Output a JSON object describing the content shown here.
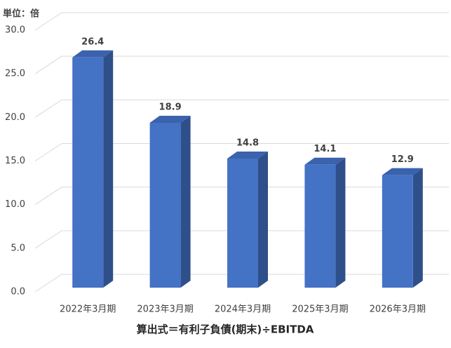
{
  "chart_data": {
    "type": "bar3d",
    "unit_label": "単位：倍",
    "x_axis_title": "算出式＝有利子負債(期末)÷EBITDA",
    "categories": [
      "2022年3月期",
      "2023年3月期",
      "2024年3月期",
      "2025年3月期",
      "2026年3月期"
    ],
    "values": [
      26.4,
      18.9,
      14.8,
      14.1,
      12.9
    ],
    "color": "#4472c4",
    "ylim": [
      0,
      30
    ],
    "yticks": [
      {
        "value": 0,
        "label": "0.0"
      },
      {
        "value": 5,
        "label": "5.0"
      },
      {
        "value": 10,
        "label": "10.0"
      },
      {
        "value": 15,
        "label": "15.0"
      },
      {
        "value": 20,
        "label": "20.0"
      },
      {
        "value": 25,
        "label": "25.0"
      },
      {
        "value": 30,
        "label": "30.0"
      }
    ],
    "grid": true
  }
}
